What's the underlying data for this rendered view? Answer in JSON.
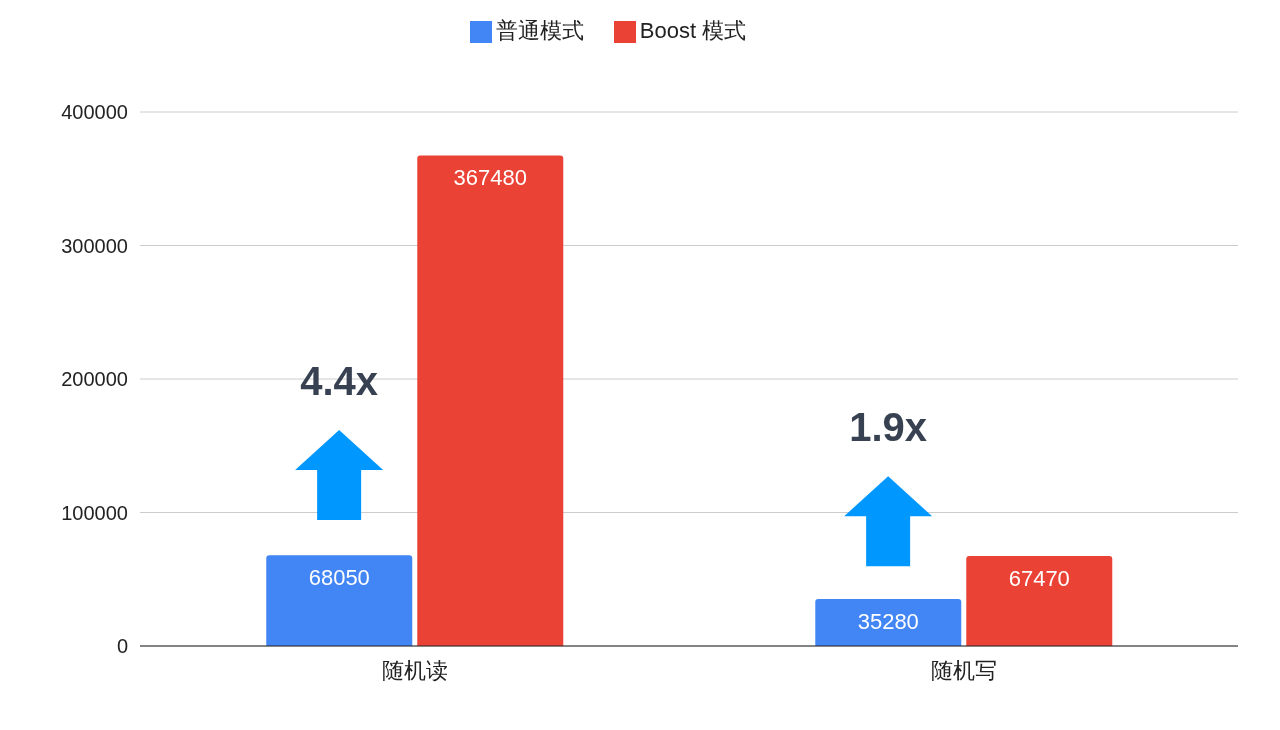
{
  "chart_data": {
    "type": "bar",
    "categories": [
      "随机读",
      "随机写"
    ],
    "series": [
      {
        "name": "普通模式",
        "color": "#4285f4",
        "values": [
          68050,
          35280
        ]
      },
      {
        "name": "Boost 模式",
        "color": "#ea4335",
        "values": [
          367480,
          67470
        ]
      }
    ],
    "ylim": [
      0,
      400000
    ],
    "yticks": [
      0,
      100000,
      200000,
      300000,
      400000
    ],
    "grid": "y",
    "legend": "top",
    "data_labels": true,
    "annotations": [
      "4.4x",
      "1.9x"
    ]
  }
}
